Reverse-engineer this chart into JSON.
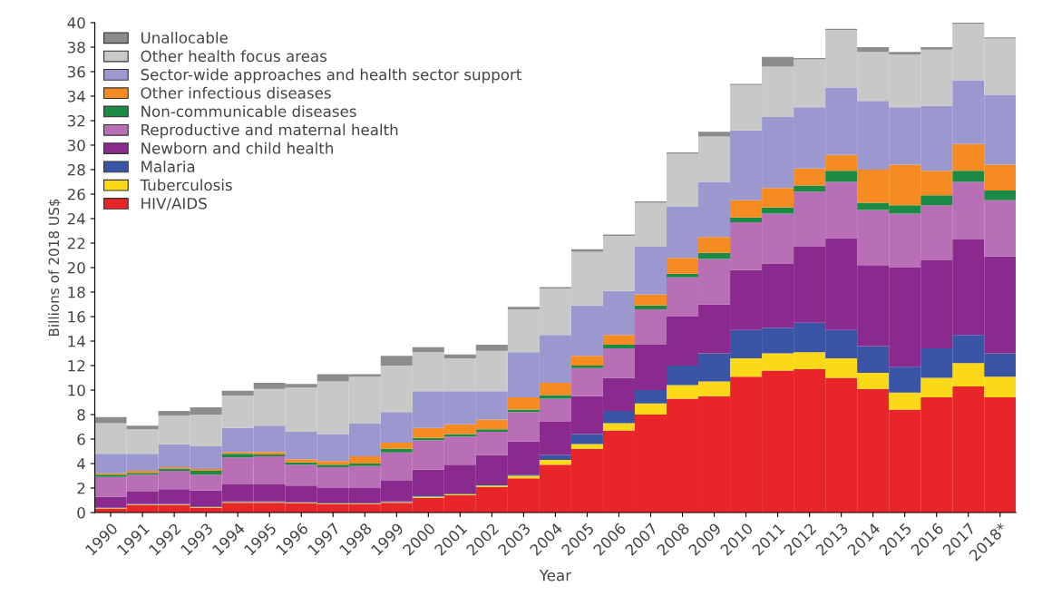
{
  "chart_data": {
    "type": "bar",
    "stacked": true,
    "xlabel": "Year",
    "ylabel": "Billions of 2018 US$",
    "categories": [
      "1990",
      "1991",
      "1992",
      "1993",
      "1994",
      "1995",
      "1996",
      "1997",
      "1998",
      "1999",
      "2000",
      "2001",
      "2002",
      "2003",
      "2004",
      "2005",
      "2006",
      "2007",
      "2008",
      "2009",
      "2010",
      "2011",
      "2012",
      "2013",
      "2014",
      "2015",
      "2016",
      "2017",
      "2018*"
    ],
    "series": [
      {
        "name": "HIV/AIDS",
        "color": "#e8262a",
        "values": [
          0.3,
          0.6,
          0.6,
          0.4,
          0.8,
          0.8,
          0.75,
          0.7,
          0.7,
          0.8,
          1.2,
          1.4,
          2.1,
          2.8,
          3.9,
          5.2,
          6.7,
          8.0,
          9.3,
          9.5,
          11.1,
          11.6,
          11.7,
          11.0,
          10.1,
          8.4,
          9.4,
          10.3,
          9.4
        ]
      },
      {
        "name": "Tuberculosis",
        "color": "#fcd917",
        "values": [
          0.05,
          0.05,
          0.05,
          0.05,
          0.05,
          0.05,
          0.05,
          0.05,
          0.05,
          0.05,
          0.1,
          0.1,
          0.1,
          0.2,
          0.4,
          0.4,
          0.6,
          0.9,
          1.1,
          1.2,
          1.5,
          1.4,
          1.4,
          1.6,
          1.3,
          1.4,
          1.6,
          1.9,
          1.7
        ]
      },
      {
        "name": "Malaria",
        "color": "#3a55a5",
        "values": [
          0.05,
          0.05,
          0.05,
          0.05,
          0.05,
          0.05,
          0.05,
          0.05,
          0.05,
          0.05,
          0.1,
          0.05,
          0.1,
          0.1,
          0.4,
          0.8,
          1.0,
          1.1,
          1.6,
          2.3,
          2.3,
          2.1,
          2.4,
          2.3,
          2.2,
          2.1,
          2.4,
          2.3,
          1.9
        ]
      },
      {
        "name": "Newborn and child health",
        "color": "#8a2a8f",
        "values": [
          0.9,
          1.0,
          1.2,
          1.3,
          1.4,
          1.4,
          1.35,
          1.2,
          1.2,
          1.7,
          2.1,
          2.35,
          2.4,
          2.7,
          2.7,
          3.1,
          2.7,
          3.7,
          4.0,
          4.0,
          4.9,
          5.2,
          6.2,
          7.5,
          6.6,
          8.1,
          7.2,
          7.8,
          7.9
        ]
      },
      {
        "name": "Reproductive and maternal health",
        "color": "#b86fb5",
        "values": [
          1.6,
          1.4,
          1.5,
          1.3,
          2.2,
          2.3,
          1.7,
          1.7,
          1.8,
          2.3,
          2.4,
          2.3,
          1.9,
          2.4,
          1.9,
          2.3,
          2.4,
          2.9,
          3.2,
          3.7,
          3.9,
          4.1,
          4.5,
          4.6,
          4.5,
          4.4,
          4.5,
          4.7,
          4.6
        ]
      },
      {
        "name": "Non-communicable diseases",
        "color": "#1a8a45",
        "values": [
          0.2,
          0.15,
          0.2,
          0.3,
          0.3,
          0.15,
          0.2,
          0.2,
          0.2,
          0.3,
          0.2,
          0.2,
          0.2,
          0.2,
          0.3,
          0.2,
          0.3,
          0.3,
          0.3,
          0.5,
          0.4,
          0.5,
          0.5,
          0.9,
          0.6,
          0.7,
          0.8,
          0.9,
          0.8
        ]
      },
      {
        "name": "Other infectious diseases",
        "color": "#f68b21",
        "values": [
          0.1,
          0.15,
          0.1,
          0.15,
          0.15,
          0.2,
          0.25,
          0.3,
          0.6,
          0.5,
          0.8,
          0.8,
          0.8,
          1.0,
          1.0,
          0.8,
          0.8,
          0.9,
          1.3,
          1.3,
          1.4,
          1.6,
          1.4,
          1.3,
          2.7,
          3.3,
          2.0,
          2.2,
          2.1
        ]
      },
      {
        "name": "Sector-wide approaches and health sector support",
        "color": "#9b98cf",
        "values": [
          1.6,
          1.4,
          1.9,
          1.85,
          1.95,
          2.15,
          2.25,
          2.2,
          2.7,
          2.5,
          3.0,
          2.7,
          2.3,
          3.7,
          3.9,
          4.1,
          3.6,
          3.9,
          4.2,
          4.5,
          5.7,
          5.8,
          5.0,
          5.5,
          5.6,
          4.7,
          5.3,
          5.2,
          5.7
        ]
      },
      {
        "name": "Other health focus areas",
        "color": "#c8c8c8",
        "values": [
          2.5,
          2.0,
          2.3,
          2.6,
          2.65,
          3.0,
          3.6,
          4.3,
          3.8,
          3.8,
          3.2,
          2.7,
          3.3,
          3.5,
          3.8,
          4.4,
          4.5,
          3.6,
          4.3,
          3.7,
          3.7,
          4.1,
          3.9,
          4.7,
          4.0,
          4.3,
          4.6,
          4.6,
          4.6
        ]
      },
      {
        "name": "Unallocable",
        "color": "#8c8c8c",
        "values": [
          0.5,
          0.3,
          0.4,
          0.6,
          0.4,
          0.5,
          0.3,
          0.6,
          0.2,
          0.8,
          0.4,
          0.3,
          0.5,
          0.2,
          0.1,
          0.2,
          0.1,
          0.1,
          0.1,
          0.4,
          0.1,
          0.8,
          0.1,
          0.1,
          0.4,
          0.2,
          0.2,
          0.1,
          0.1
        ]
      }
    ],
    "ylim": [
      0,
      40
    ],
    "yticks": [
      0,
      2,
      4,
      6,
      8,
      10,
      12,
      14,
      16,
      18,
      20,
      22,
      24,
      26,
      28,
      30,
      32,
      34,
      36,
      38,
      40
    ],
    "legend": "top left",
    "grid": false
  }
}
